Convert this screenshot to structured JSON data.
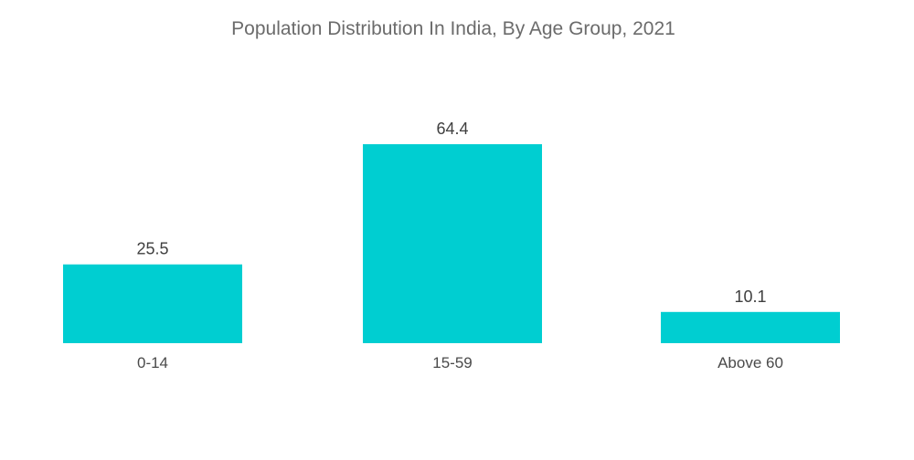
{
  "chart_data": {
    "type": "bar",
    "title": "Population Distribution In India, By Age Group, 2021",
    "categories": [
      "0-14",
      "15-59",
      "Above 60"
    ],
    "values": [
      25.5,
      64.4,
      10.1
    ],
    "value_labels": [
      "25.5",
      "64.4",
      "10.1"
    ],
    "xlabel": "",
    "ylabel": "",
    "ylim": [
      0,
      100
    ],
    "grid": false,
    "legend": "none",
    "bar_color": "#00CED1"
  }
}
